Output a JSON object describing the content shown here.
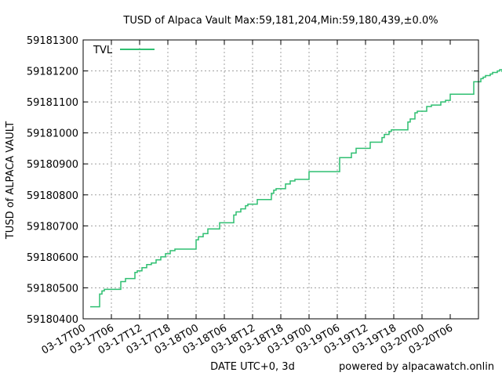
{
  "chart_data": {
    "type": "line",
    "title": "TUSD of Alpaca Vault Max:59,181,204,Min:59,180,439,±0.0%",
    "xlabel": "DATE UTC+0, 3d",
    "ylabel": "TUSD of ALPACA VAULT",
    "credit": "powered by alpacawatch.onlin",
    "ylim": [
      59180400,
      59181300
    ],
    "y_ticks": [
      "59180400",
      "59180500",
      "59180600",
      "59180700",
      "59180800",
      "59180900",
      "59181000",
      "59181100",
      "59181200",
      "59181300"
    ],
    "xlim_hours": [
      0,
      84
    ],
    "x_ticks": [
      "03-17T00",
      "03-17T06",
      "03-17T12",
      "03-17T18",
      "03-18T00",
      "03-18T06",
      "03-18T12",
      "03-18T18",
      "03-19T00",
      "03-19T06",
      "03-19T12",
      "03-19T18",
      "03-20T00",
      "03-20T06"
    ],
    "legend": {
      "placement": "top-left"
    },
    "grid": true,
    "series": [
      {
        "name": "TVL",
        "color": "#2fbf71",
        "points": [
          [
            1.5,
            59180439
          ],
          [
            3.5,
            59180439
          ],
          [
            3.5,
            59180480
          ],
          [
            4.0,
            59180480
          ],
          [
            4.0,
            59180490
          ],
          [
            4.5,
            59180490
          ],
          [
            4.5,
            59180495
          ],
          [
            8.0,
            59180495
          ],
          [
            8.0,
            59180520
          ],
          [
            9.0,
            59180520
          ],
          [
            9.0,
            59180530
          ],
          [
            11.0,
            59180530
          ],
          [
            11.0,
            59180550
          ],
          [
            11.5,
            59180550
          ],
          [
            11.5,
            59180555
          ],
          [
            12.5,
            59180555
          ],
          [
            12.5,
            59180565
          ],
          [
            13.5,
            59180565
          ],
          [
            13.5,
            59180575
          ],
          [
            14.5,
            59180575
          ],
          [
            14.5,
            59180580
          ],
          [
            15.5,
            59180580
          ],
          [
            15.5,
            59180590
          ],
          [
            16.5,
            59180590
          ],
          [
            16.5,
            59180600
          ],
          [
            17.5,
            59180600
          ],
          [
            17.5,
            59180610
          ],
          [
            18.5,
            59180610
          ],
          [
            18.5,
            59180620
          ],
          [
            19.5,
            59180620
          ],
          [
            19.5,
            59180625
          ],
          [
            24.0,
            59180625
          ],
          [
            24.0,
            59180655
          ],
          [
            24.5,
            59180655
          ],
          [
            24.5,
            59180665
          ],
          [
            25.5,
            59180665
          ],
          [
            25.5,
            59180675
          ],
          [
            26.5,
            59180675
          ],
          [
            26.5,
            59180690
          ],
          [
            29.0,
            59180690
          ],
          [
            29.0,
            59180710
          ],
          [
            32.0,
            59180710
          ],
          [
            32.0,
            59180735
          ],
          [
            32.5,
            59180735
          ],
          [
            32.5,
            59180745
          ],
          [
            33.5,
            59180745
          ],
          [
            33.5,
            59180755
          ],
          [
            34.5,
            59180755
          ],
          [
            34.5,
            59180765
          ],
          [
            35.0,
            59180765
          ],
          [
            35.0,
            59180770
          ],
          [
            37.0,
            59180770
          ],
          [
            37.0,
            59180785
          ],
          [
            40.0,
            59180785
          ],
          [
            40.0,
            59180805
          ],
          [
            40.5,
            59180805
          ],
          [
            40.5,
            59180815
          ],
          [
            41.0,
            59180815
          ],
          [
            41.0,
            59180820
          ],
          [
            43.0,
            59180820
          ],
          [
            43.0,
            59180835
          ],
          [
            44.0,
            59180835
          ],
          [
            44.0,
            59180845
          ],
          [
            45.0,
            59180845
          ],
          [
            45.0,
            59180850
          ],
          [
            48.0,
            59180850
          ],
          [
            48.0,
            59180875
          ],
          [
            54.5,
            59180875
          ],
          [
            54.5,
            59180920
          ],
          [
            57.0,
            59180920
          ],
          [
            57.0,
            59180935
          ],
          [
            58.0,
            59180935
          ],
          [
            58.0,
            59180950
          ],
          [
            61.0,
            59180950
          ],
          [
            61.0,
            59180970
          ],
          [
            63.5,
            59180970
          ],
          [
            63.5,
            59180985
          ],
          [
            64.0,
            59180985
          ],
          [
            64.0,
            59180995
          ],
          [
            65.0,
            59180995
          ],
          [
            65.0,
            59181005
          ],
          [
            65.5,
            59181005
          ],
          [
            65.5,
            59181010
          ],
          [
            69.0,
            59181010
          ],
          [
            69.0,
            59181035
          ],
          [
            69.5,
            59181035
          ],
          [
            69.5,
            59181045
          ],
          [
            70.5,
            59181045
          ],
          [
            70.5,
            59181065
          ],
          [
            71.0,
            59181065
          ],
          [
            71.0,
            59181070
          ],
          [
            73.0,
            59181070
          ],
          [
            73.0,
            59181085
          ],
          [
            74.0,
            59181085
          ],
          [
            74.0,
            59181090
          ],
          [
            76.0,
            59181090
          ],
          [
            76.0,
            59181100
          ],
          [
            77.0,
            59181100
          ],
          [
            77.0,
            59181105
          ],
          [
            78.0,
            59181105
          ],
          [
            78.0,
            59181125
          ],
          [
            83.0,
            59181125
          ],
          [
            83.0,
            59181165
          ],
          [
            84.5,
            59181165
          ],
          [
            84.5,
            59181175
          ],
          [
            85.0,
            59181175
          ],
          [
            85.0,
            59181180
          ],
          [
            85.5,
            59181180
          ],
          [
            85.5,
            59181185
          ],
          [
            86.5,
            59181185
          ],
          [
            86.5,
            59181190
          ],
          [
            87.0,
            59181190
          ],
          [
            87.0,
            59181195
          ],
          [
            88.0,
            59181195
          ],
          [
            88.0,
            59181200
          ],
          [
            88.5,
            59181200
          ],
          [
            88.5,
            59181204
          ],
          [
            89.0,
            59181204
          ],
          [
            89.0,
            59181198
          ],
          [
            89.5,
            59181198
          ],
          [
            89.5,
            59181204
          ],
          [
            90.0,
            59181204
          ]
        ]
      }
    ]
  }
}
